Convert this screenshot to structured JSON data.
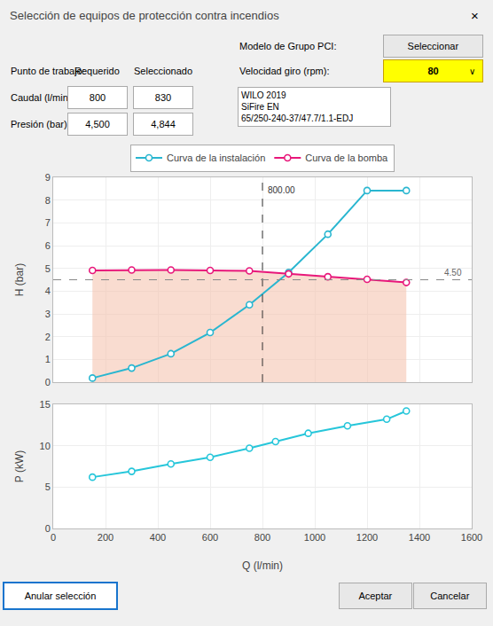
{
  "chart_data": [
    {
      "type": "line",
      "title": "Selección de equipos de protección contra incendios",
      "annotations": [
        "×",
        "Modelo de Grupo PCI:",
        "Seleccionar",
        "Punto de trabajo:",
        "Requerido",
        "Seleccionado",
        "Velocidad giro (rpm):",
        "80",
        "Caudal (l/min):",
        "800",
        "830",
        "WILO 2019\nSiFire EN\n65/250-240-37/47.7/1.1-EDJ",
        "Presión (bar):",
        "4,500",
        "4,844",
        "Anular selección",
        "Aceptar",
        "Cancelar",
        "∨"
      ],
      "ylabel": "H (bar)",
      "xlim": [
        0,
        1600
      ],
      "ylim": [
        0,
        9
      ],
      "xticks": [
        0,
        200,
        400,
        600,
        800,
        1000,
        1200,
        1400,
        1600
      ],
      "yticks": [
        0,
        1,
        2,
        3,
        4,
        5,
        6,
        7,
        8,
        9
      ],
      "grid": true,
      "tick_labels": "y",
      "legend": "top",
      "reference_lines": [
        {
          "axis": "x",
          "value": 800,
          "label": "800.00"
        },
        {
          "axis": "y",
          "value": 4.5,
          "label": "4.50"
        }
      ],
      "series": [
        {
          "name": "Curva de la instalación",
          "color": "#29B6D0",
          "marker": "circle",
          "x": [
            150,
            300,
            450,
            600,
            750,
            900,
            1050,
            1200,
            1350
          ],
          "values": [
            0.18,
            0.62,
            1.25,
            2.18,
            3.4,
            4.82,
            6.5,
            8.42,
            8.42
          ]
        },
        {
          "name": "Curva de la bomba",
          "color": "#E8177A",
          "marker": "circle",
          "fill_color": "#F5C5B0",
          "x": [
            150,
            300,
            450,
            600,
            750,
            900,
            1050,
            1200,
            1350
          ],
          "values": [
            4.91,
            4.93,
            4.93,
            4.91,
            4.89,
            4.76,
            4.63,
            4.52,
            4.38
          ]
        }
      ]
    },
    {
      "type": "line",
      "xlabel": "Q (l/min)",
      "ylabel": "P (kW)",
      "xlim": [
        0,
        1600
      ],
      "ylim": [
        0,
        15
      ],
      "xticks": [
        0,
        200,
        400,
        600,
        800,
        1000,
        1200,
        1400,
        1600
      ],
      "yticks": [
        0,
        5,
        10,
        15
      ],
      "grid": true,
      "series": [
        {
          "color": "#26C6DA",
          "marker": "circle",
          "x": [
            150,
            300,
            450,
            600,
            750,
            850,
            975,
            1125,
            1275,
            1350
          ],
          "values": [
            6.2,
            6.9,
            7.8,
            8.6,
            9.7,
            10.5,
            11.5,
            12.4,
            13.2,
            14.2
          ]
        }
      ]
    }
  ]
}
